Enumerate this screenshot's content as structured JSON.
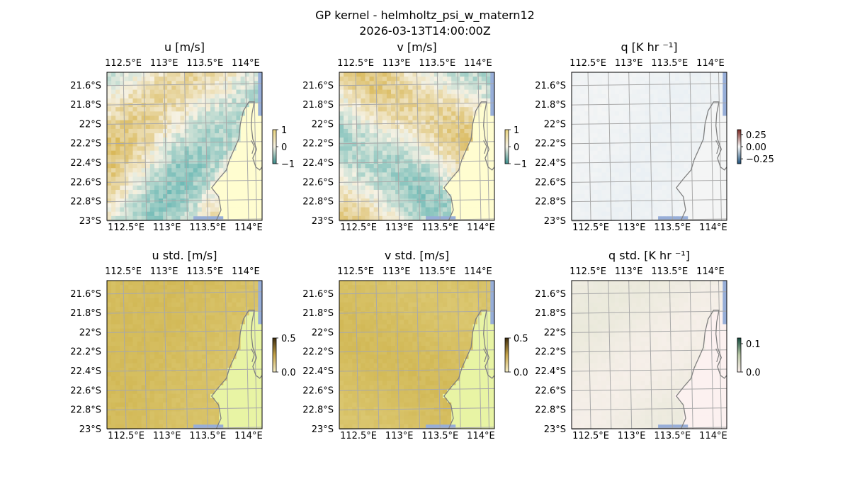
{
  "figure": {
    "title": "GP kernel - helmholtz_psi_w_matern12",
    "timestamp": "2026-03-13T14:00:00Z"
  },
  "colors": {
    "ocean": "#97aed8",
    "grid": "#a9a9a9",
    "coastline": "#808080",
    "land_fill": "#fffdd0"
  },
  "chart_data": [
    {
      "type": "heatmap",
      "title": "u [m/s]",
      "x_ticks": [
        "112.5°E",
        "113°E",
        "113.5°E",
        "114°E"
      ],
      "y_ticks": [
        "21.6°S",
        "21.8°S",
        "22°S",
        "22.2°S",
        "22.4°S",
        "22.6°S",
        "22.8°S",
        "23°S"
      ],
      "colorbar_ticks": [
        "1",
        "0",
        "−1"
      ],
      "colorbar_range": [
        -1,
        1
      ],
      "colormap": "diverging teal–yellow",
      "grid": true,
      "coastline": true
    },
    {
      "type": "heatmap",
      "title": "v [m/s]",
      "x_ticks": [
        "112.5°E",
        "113°E",
        "113.5°E",
        "114°E"
      ],
      "y_ticks": [
        "21.6°S",
        "21.8°S",
        "22°S",
        "22.2°S",
        "22.4°S",
        "22.6°S",
        "22.8°S",
        "23°S"
      ],
      "colorbar_ticks": [
        "1",
        "0",
        "−1"
      ],
      "colorbar_range": [
        -1,
        1
      ],
      "colormap": "diverging teal–yellow",
      "grid": true,
      "coastline": true
    },
    {
      "type": "heatmap",
      "title": "q [K hr ⁻¹]",
      "x_ticks": [
        "112.5°E",
        "113°E",
        "113.5°E",
        "114°E"
      ],
      "y_ticks": [
        "21.6°S",
        "21.8°S",
        "22°S",
        "22.2°S",
        "22.4°S",
        "22.6°S",
        "22.8°S",
        "23°S"
      ],
      "colorbar_ticks": [
        "0.25",
        "0.00",
        "−0.25"
      ],
      "colorbar_range": [
        -0.35,
        0.35
      ],
      "colormap": "diverging blue–red",
      "grid": true,
      "coastline": true
    },
    {
      "type": "heatmap",
      "title": "u std. [m/s]",
      "x_ticks": [
        "112.5°E",
        "113°E",
        "113.5°E",
        "114°E"
      ],
      "y_ticks": [
        "21.6°S",
        "21.8°S",
        "22°S",
        "22.2°S",
        "22.4°S",
        "22.6°S",
        "22.8°S",
        "23°S"
      ],
      "colorbar_ticks": [
        "0.5",
        "0.0"
      ],
      "colorbar_range": [
        0,
        0.5
      ],
      "colormap": "sequential yellow–brown",
      "grid": true,
      "coastline": true
    },
    {
      "type": "heatmap",
      "title": "v std. [m/s]",
      "x_ticks": [
        "112.5°E",
        "113°E",
        "113.5°E",
        "114°E"
      ],
      "y_ticks": [
        "21.6°S",
        "21.8°S",
        "22°S",
        "22.2°S",
        "22.4°S",
        "22.6°S",
        "22.8°S",
        "23°S"
      ],
      "colorbar_ticks": [
        "0.5",
        "0.0"
      ],
      "colorbar_range": [
        0,
        0.5
      ],
      "colormap": "sequential yellow–brown",
      "grid": true,
      "coastline": true
    },
    {
      "type": "heatmap",
      "title": "q std. [K hr ⁻¹]",
      "x_ticks": [
        "112.5°E",
        "113°E",
        "113.5°E",
        "114°E"
      ],
      "y_ticks": [
        "21.6°S",
        "21.8°S",
        "22°S",
        "22.2°S",
        "22.4°S",
        "22.6°S",
        "22.8°S",
        "23°S"
      ],
      "colorbar_ticks": [
        "0.1",
        "0.0"
      ],
      "colorbar_range": [
        0,
        0.12
      ],
      "colormap": "sequential pink–green",
      "grid": true,
      "coastline": true
    }
  ]
}
